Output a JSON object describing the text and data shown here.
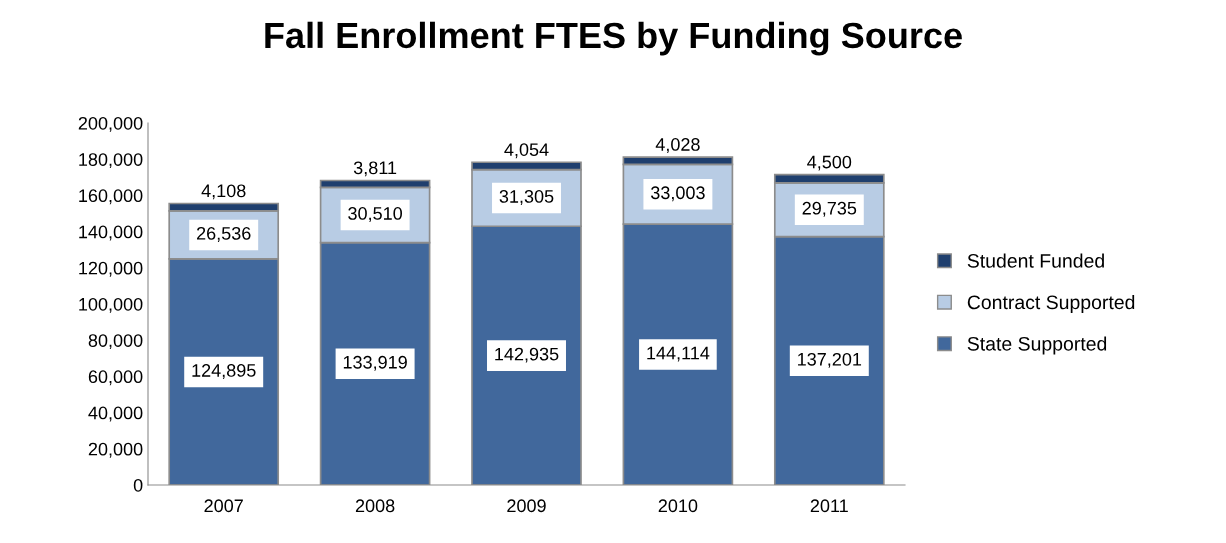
{
  "chart_data": {
    "type": "bar",
    "title": "Fall Enrollment FTES by Funding Source",
    "categories": [
      "2007",
      "2008",
      "2009",
      "2010",
      "2011"
    ],
    "stacked": true,
    "series": [
      {
        "name": "State Supported",
        "color": "#41689c",
        "values": [
          124895,
          133919,
          142935,
          144114,
          137201
        ],
        "value_labels": [
          "124,895",
          "133,919",
          "142,935",
          "144,114",
          "137,201"
        ]
      },
      {
        "name": "Contract Supported",
        "color": "#b8cce4",
        "values": [
          26536,
          30510,
          31305,
          33003,
          29735
        ],
        "value_labels": [
          "26,536",
          "30,510",
          "31,305",
          "33,003",
          "29,735"
        ]
      },
      {
        "name": "Student Funded",
        "color": "#1f3f6e",
        "values": [
          4108,
          3811,
          4054,
          4028,
          4500
        ],
        "value_labels": [
          "4,108",
          "3,811",
          "4,054",
          "4,028",
          "4,500"
        ]
      }
    ],
    "ylim": [
      0,
      200000
    ],
    "yticks": [
      {
        "value": 0,
        "label": "0"
      },
      {
        "value": 20000,
        "label": "20,000"
      },
      {
        "value": 40000,
        "label": "40,000"
      },
      {
        "value": 60000,
        "label": "60,000"
      },
      {
        "value": 80000,
        "label": "80,000"
      },
      {
        "value": 100000,
        "label": "100,000"
      },
      {
        "value": 120000,
        "label": "120,000"
      },
      {
        "value": 140000,
        "label": "140,000"
      },
      {
        "value": 160000,
        "label": "160,000"
      },
      {
        "value": 180000,
        "label": "180,000"
      },
      {
        "value": 200000,
        "label": "200,000"
      }
    ],
    "grid": false,
    "legend": "right"
  }
}
